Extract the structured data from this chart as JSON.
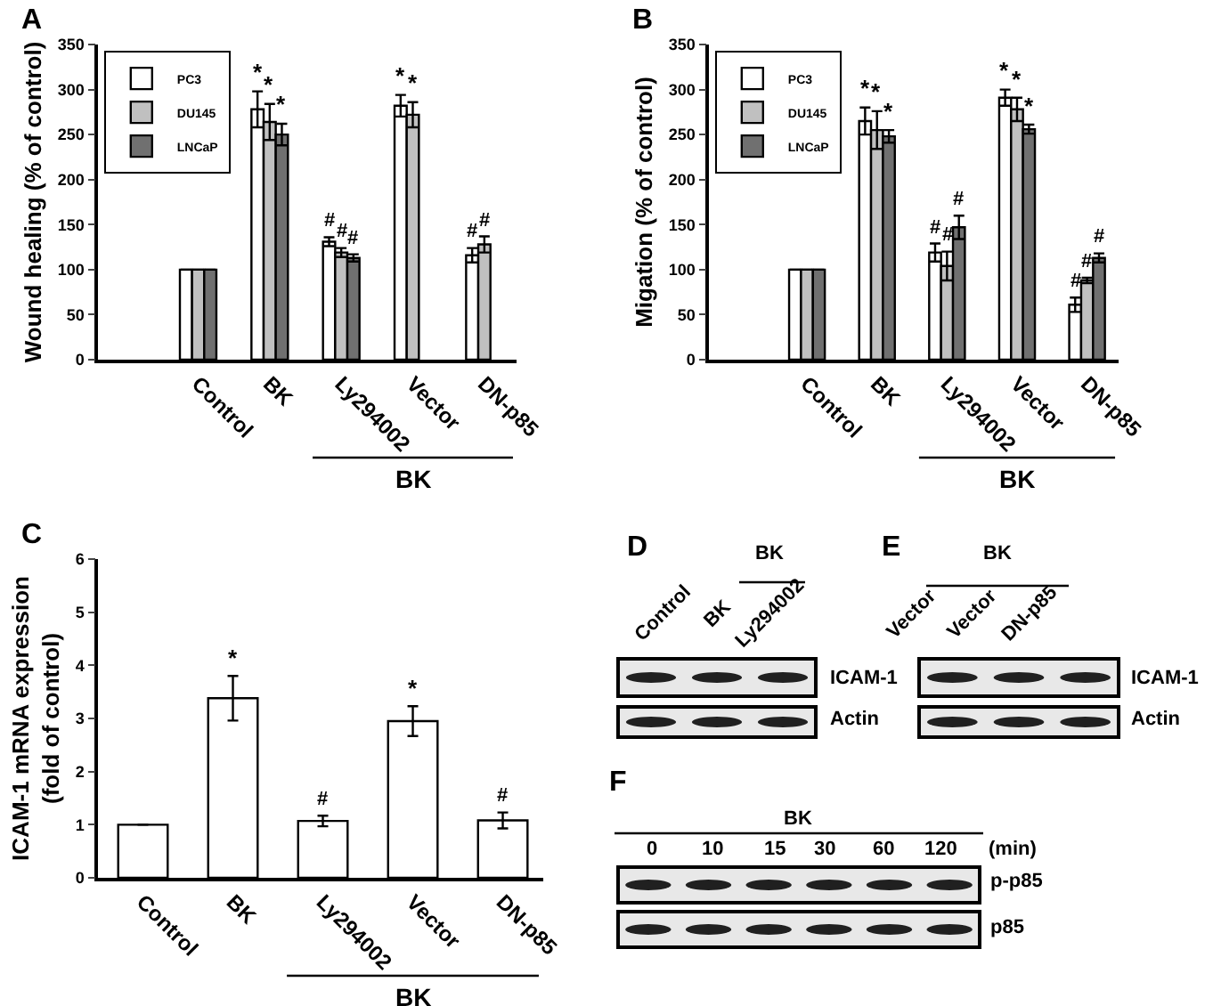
{
  "chart_data": [
    {
      "type": "bar",
      "title": "A",
      "ylabel": "Wound healing (% of control)",
      "categories": [
        "Control",
        "BK",
        "Ly294002",
        "Vector",
        "DN-p85"
      ],
      "ylim": [
        0,
        350
      ],
      "yticks": [
        0,
        50,
        100,
        150,
        200,
        250,
        300,
        350
      ],
      "legend": "top left",
      "grid": false,
      "annotations": [
        "BK"
      ],
      "series": [
        {
          "name": "PC3",
          "color": "#ffffff",
          "values": [
            100,
            278,
            131,
            282,
            116
          ],
          "errors": [
            null,
            20,
            5,
            12,
            8
          ],
          "value_labels": [
            null,
            "*",
            "#",
            "*",
            "#"
          ]
        },
        {
          "name": "DU145",
          "color": "#c0c0c0",
          "values": [
            100,
            264,
            119,
            272,
            128
          ],
          "errors": [
            null,
            20,
            5,
            14,
            9
          ],
          "value_labels": [
            null,
            "*",
            "#",
            "*",
            "#"
          ]
        },
        {
          "name": "LNCaP",
          "color": "#707070",
          "values": [
            100,
            250,
            113,
            null,
            null
          ],
          "errors": [
            null,
            12,
            4,
            null,
            null
          ],
          "value_labels": [
            null,
            "*",
            "#",
            null,
            null
          ]
        }
      ]
    },
    {
      "type": "bar",
      "title": "B",
      "ylabel": "Migation (% of control)",
      "categories": [
        "Control",
        "BK",
        "Ly294002",
        "Vector",
        "DN-p85"
      ],
      "ylim": [
        0,
        350
      ],
      "yticks": [
        0,
        50,
        100,
        150,
        200,
        250,
        300,
        350
      ],
      "legend": "top left",
      "grid": false,
      "annotations": [
        "BK"
      ],
      "series": [
        {
          "name": "PC3",
          "color": "#ffffff",
          "values": [
            100,
            265,
            119,
            291,
            61
          ],
          "errors": [
            null,
            15,
            10,
            9,
            8
          ],
          "value_labels": [
            null,
            "*",
            "#",
            "*",
            "#"
          ]
        },
        {
          "name": "DU145",
          "color": "#c0c0c0",
          "values": [
            100,
            255,
            104,
            278,
            88
          ],
          "errors": [
            null,
            21,
            16,
            13,
            3
          ],
          "value_labels": [
            null,
            "*",
            "#",
            "*",
            "#"
          ]
        },
        {
          "name": "LNCaP",
          "color": "#707070",
          "values": [
            100,
            248,
            147,
            256,
            113
          ],
          "errors": [
            null,
            7,
            13,
            5,
            5
          ],
          "value_labels": [
            null,
            "*",
            "#",
            "*",
            "#"
          ]
        }
      ]
    },
    {
      "type": "bar",
      "title": "C",
      "ylabel": "ICAM-1 mRNA expression\n(fold of control)",
      "categories": [
        "Control",
        "BK",
        "Ly294002",
        "Vector",
        "DN-p85"
      ],
      "ylim": [
        0,
        6
      ],
      "yticks": [
        0,
        1,
        2,
        3,
        4,
        5,
        6
      ],
      "legend": false,
      "grid": false,
      "annotations": [
        "BK"
      ],
      "series": [
        {
          "color": "#ffffff",
          "values": [
            1,
            3.38,
            1.07,
            2.95,
            1.08
          ],
          "errors": [
            null,
            0.42,
            0.1,
            0.28,
            0.15
          ],
          "value_labels": [
            null,
            "*",
            "#",
            "*",
            "#"
          ]
        }
      ]
    },
    {
      "type": "other",
      "title": "D",
      "annotations": [
        "Control",
        "BK",
        "Ly294002",
        "BK",
        "ICAM-1",
        "Actin"
      ]
    },
    {
      "type": "other",
      "title": "E",
      "annotations": [
        "Vector",
        "Vector",
        "DN-p85",
        "BK",
        "ICAM-1",
        "Actin"
      ]
    },
    {
      "type": "other",
      "title": "F",
      "annotations": [
        "BK",
        "0",
        "10",
        "15",
        "30",
        "60",
        "120",
        "(min)",
        "p-p85",
        "p85"
      ]
    }
  ]
}
